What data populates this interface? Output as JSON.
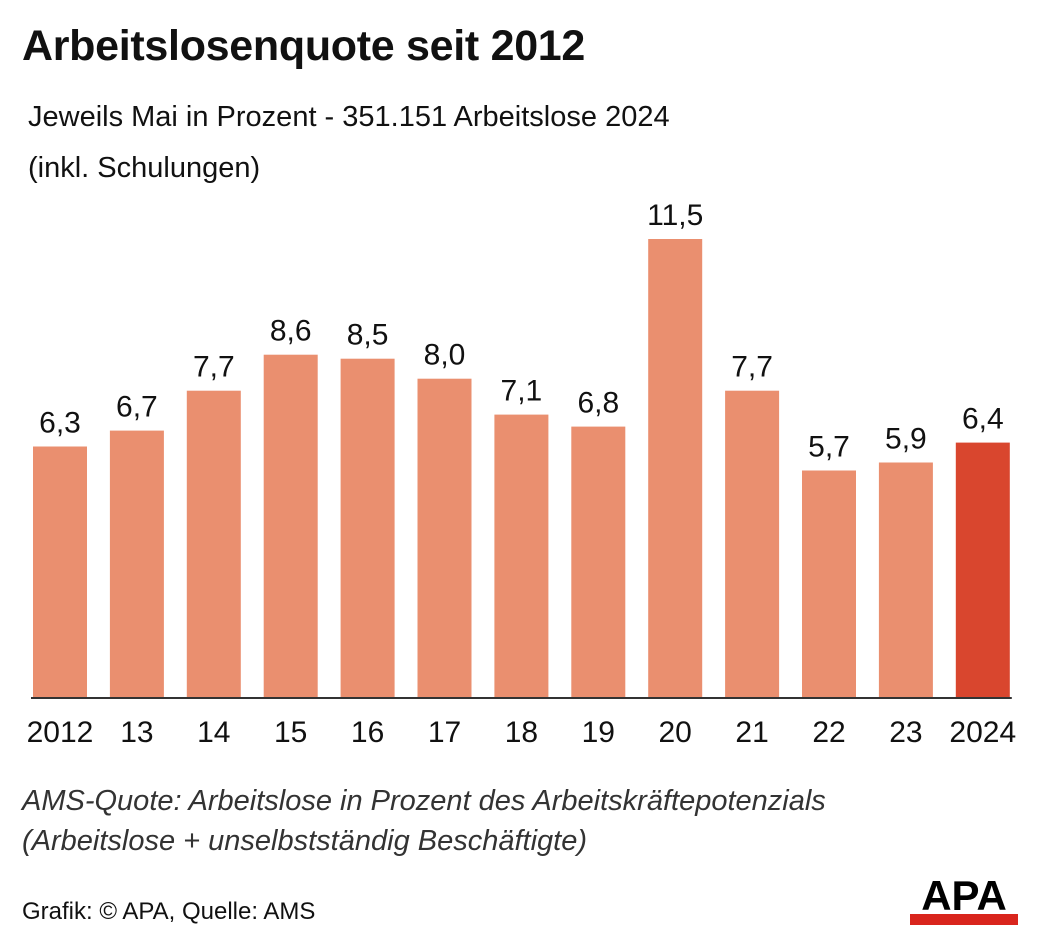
{
  "header": {
    "title": "Arbeitslosenquote seit 2012",
    "subtitle_line1": "Jeweils Mai in Prozent - 351.151 Arbeitslose 2024",
    "subtitle_line2": "(inkl. Schulungen)"
  },
  "footer": {
    "note_line1": "AMS-Quote: Arbeitslose in Prozent des Arbeitskräftepotenzials",
    "note_line2": "(Arbeitslose + unselbstständig Beschäftigte)",
    "source": "Grafik: © APA, Quelle: AMS",
    "logo_text": "APA"
  },
  "colors": {
    "bar": "#EA8F6F",
    "highlight": "#D9462E",
    "axis": "#333333",
    "logo_red": "#D9251D"
  },
  "chart_data": {
    "type": "bar",
    "title": "Arbeitslosenquote seit 2012",
    "subtitle": "Jeweils Mai in Prozent - 351.151 Arbeitslose 2024 (inkl. Schulungen)",
    "categories": [
      "2012",
      "13",
      "14",
      "15",
      "16",
      "17",
      "18",
      "19",
      "20",
      "21",
      "22",
      "23",
      "2024"
    ],
    "values": [
      6.3,
      6.7,
      7.7,
      8.6,
      8.5,
      8.0,
      7.1,
      6.8,
      11.5,
      7.7,
      5.7,
      5.9,
      6.4
    ],
    "data_labels": [
      "6,3",
      "6,7",
      "7,7",
      "8,6",
      "8,5",
      "8,0",
      "7,1",
      "6,8",
      "11,5",
      "7,7",
      "5,7",
      "5,9",
      "6,4"
    ],
    "highlight_category": "2024",
    "ylim": [
      0,
      11.5
    ],
    "xlabel": "",
    "ylabel": "",
    "grid": false,
    "legend": "none"
  }
}
